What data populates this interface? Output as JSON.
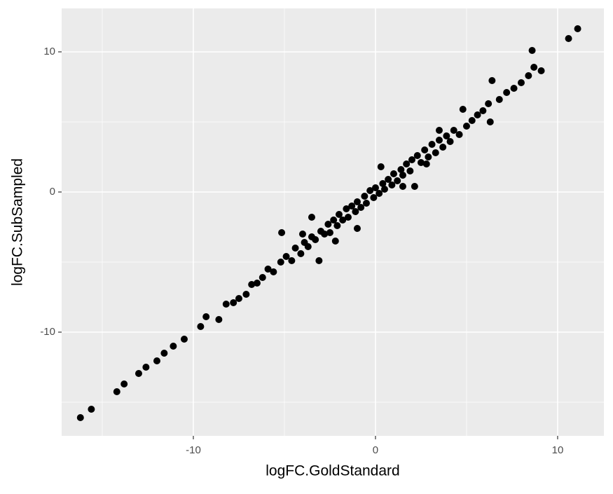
{
  "chart_data": {
    "type": "scatter",
    "x_label": "logFC.GoldStandard",
    "y_label": "logFC.SubSampled",
    "x": [
      -16.2,
      -15.6,
      -14.2,
      -13.8,
      -13.0,
      -12.6,
      -12.0,
      -11.6,
      -11.1,
      -10.5,
      -9.6,
      -9.3,
      -8.6,
      -8.2,
      -7.8,
      -7.5,
      -7.1,
      -6.8,
      -6.5,
      -6.2,
      -5.9,
      -5.6,
      -5.2,
      -5.15,
      -4.9,
      -4.6,
      -4.4,
      -4.1,
      -3.9,
      -3.7,
      -3.5,
      -3.3,
      -3.1,
      -3.0,
      -2.8,
      -2.6,
      -2.5,
      -2.3,
      -2.1,
      -2.0,
      -1.8,
      -1.6,
      -1.5,
      -1.3,
      -1.1,
      -1.0,
      -0.8,
      -0.6,
      -0.5,
      -0.3,
      -0.1,
      0,
      0.2,
      0.4,
      0.5,
      0.7,
      0.9,
      1.0,
      1.2,
      1.4,
      1.5,
      1.7,
      1.9,
      2.0,
      2.15,
      2.3,
      2.5,
      2.7,
      2.9,
      3.1,
      3.3,
      3.5,
      3.7,
      3.9,
      4.1,
      4.3,
      4.6,
      4.8,
      5.0,
      5.3,
      5.6,
      5.9,
      6.2,
      6.3,
      6.4,
      6.8,
      7.2,
      7.6,
      8.0,
      8.4,
      8.6,
      8.7,
      9.1,
      10.6,
      11.1,
      -2.2,
      1.5,
      -3.5,
      0.3,
      -1.0,
      2.8,
      3.5,
      -4.0
    ],
    "y": [
      -16.1,
      -15.5,
      -14.25,
      -13.7,
      -12.95,
      -12.5,
      -12.05,
      -11.5,
      -11.0,
      -10.5,
      -9.6,
      -8.9,
      -9.1,
      -8.0,
      -7.9,
      -7.6,
      -7.3,
      -6.6,
      -6.5,
      -6.1,
      -5.5,
      -5.7,
      -5.0,
      -2.9,
      -4.6,
      -4.9,
      -4.0,
      -4.4,
      -3.6,
      -3.9,
      -3.2,
      -3.4,
      -4.9,
      -2.8,
      -3.0,
      -2.3,
      -2.9,
      -2.0,
      -2.4,
      -1.6,
      -2.0,
      -1.2,
      -1.8,
      -1.0,
      -1.4,
      -0.7,
      -1.1,
      -0.3,
      -0.8,
      0.1,
      -0.4,
      0.3,
      -0.1,
      0.6,
      0.2,
      0.9,
      0.5,
      1.3,
      0.8,
      1.6,
      1.2,
      2.0,
      1.5,
      2.3,
      0.4,
      2.6,
      2.1,
      3.0,
      2.5,
      3.4,
      2.8,
      3.7,
      3.2,
      4.0,
      3.6,
      4.4,
      4.1,
      5.9,
      4.7,
      5.1,
      5.5,
      5.8,
      6.3,
      5.0,
      7.95,
      6.6,
      7.1,
      7.4,
      7.8,
      8.3,
      10.1,
      8.9,
      8.65,
      10.95,
      11.65,
      -3.5,
      0.4,
      -1.8,
      1.8,
      -2.6,
      2.0,
      4.4,
      -3.0
    ],
    "color": "#000000",
    "xlim": [
      -17.23,
      12.54
    ],
    "ylim": [
      -17.4,
      13.1
    ],
    "xticks": [
      -10,
      0,
      10
    ],
    "yticks": [
      -10,
      0,
      10
    ],
    "x_minor_grid": [
      -15,
      -5,
      5
    ],
    "y_minor_grid": [
      -15,
      -5,
      5
    ],
    "grid": true
  }
}
